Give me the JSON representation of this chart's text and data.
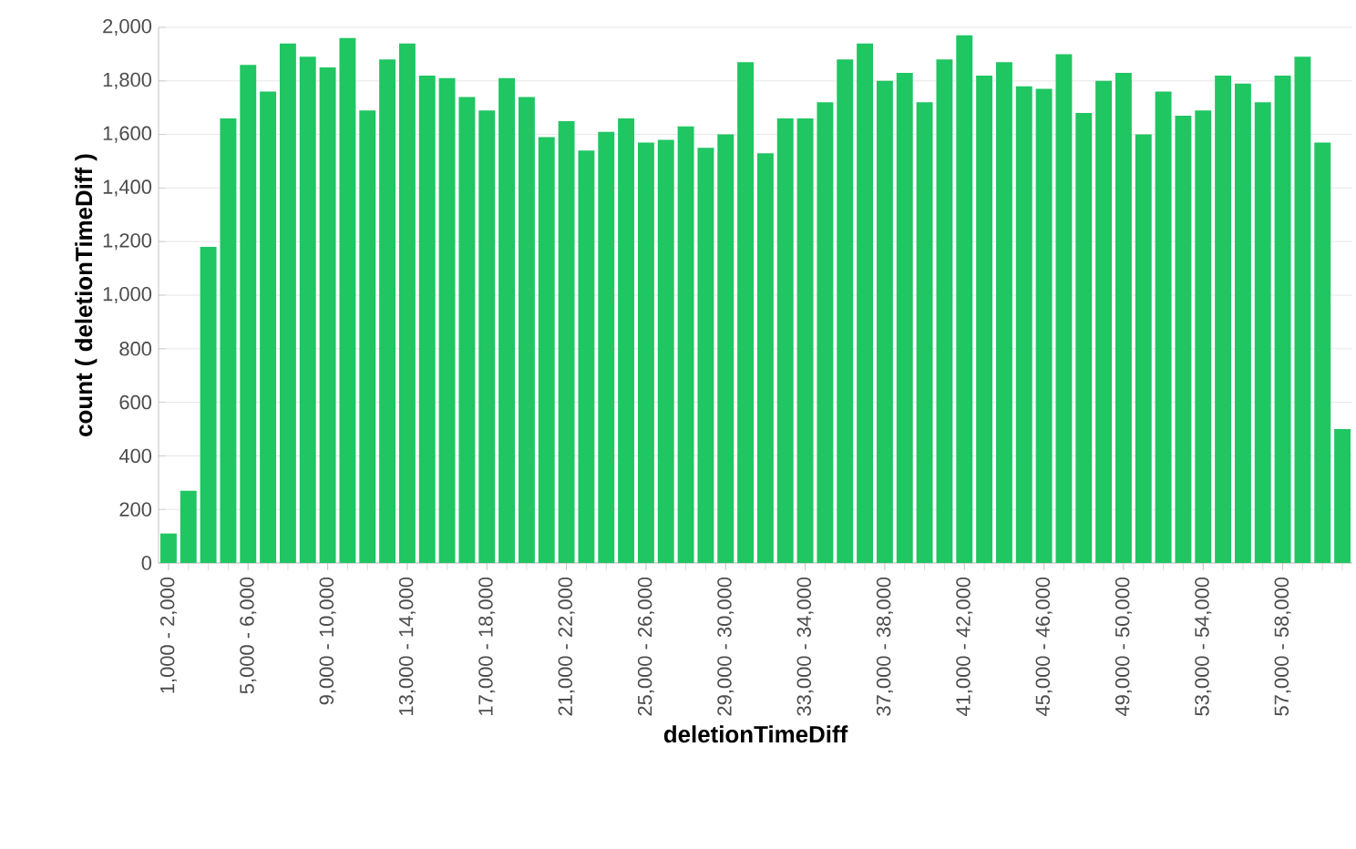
{
  "chart_data": {
    "type": "bar",
    "xlabel": "deletionTimeDiff",
    "ylabel": "count ( deletionTimeDiff )",
    "categories": [
      "1,000 - 2,000",
      null,
      null,
      null,
      "5,000 - 6,000",
      null,
      null,
      null,
      "9,000 - 10,000",
      null,
      null,
      null,
      "13,000 - 14,000",
      null,
      null,
      null,
      "17,000 - 18,000",
      null,
      null,
      null,
      "21,000 - 22,000",
      null,
      null,
      null,
      "25,000 - 26,000",
      null,
      null,
      null,
      "29,000 - 30,000",
      null,
      null,
      null,
      "33,000 - 34,000",
      null,
      null,
      null,
      "37,000 - 38,000",
      null,
      null,
      null,
      "41,000 - 42,000",
      null,
      null,
      null,
      "45,000 - 46,000",
      null,
      null,
      null,
      "49,000 - 50,000",
      null,
      null,
      null,
      "53,000 - 54,000",
      null,
      null,
      null,
      "57,000 - 58,000",
      null,
      null,
      null
    ],
    "values": [
      110,
      270,
      1180,
      1660,
      1860,
      1760,
      1940,
      1890,
      1850,
      1960,
      1690,
      1880,
      1940,
      1820,
      1810,
      1740,
      1690,
      1810,
      1740,
      1590,
      1650,
      1540,
      1610,
      1660,
      1570,
      1580,
      1630,
      1550,
      1600,
      1870,
      1530,
      1660,
      1660,
      1720,
      1880,
      1940,
      1800,
      1830,
      1720,
      1880,
      1970,
      1820,
      1870,
      1780,
      1770,
      1900,
      1680,
      1800,
      1830,
      1600,
      1760,
      1670,
      1690,
      1820,
      1790,
      1720,
      1820,
      1890,
      1570,
      500
    ],
    "color": "#1fc662",
    "ylim": [
      0,
      2000
    ],
    "yticks": [
      0,
      200,
      400,
      600,
      800,
      {
        "value": 1000,
        "label": "1,000"
      },
      {
        "value": 1200,
        "label": "1,200"
      },
      {
        "value": 1400,
        "label": "1,400"
      },
      {
        "value": 1600,
        "label": "1,600"
      },
      {
        "value": 1800,
        "label": "1,800"
      },
      {
        "value": 2000,
        "label": "2,000"
      }
    ],
    "grid": "y"
  }
}
